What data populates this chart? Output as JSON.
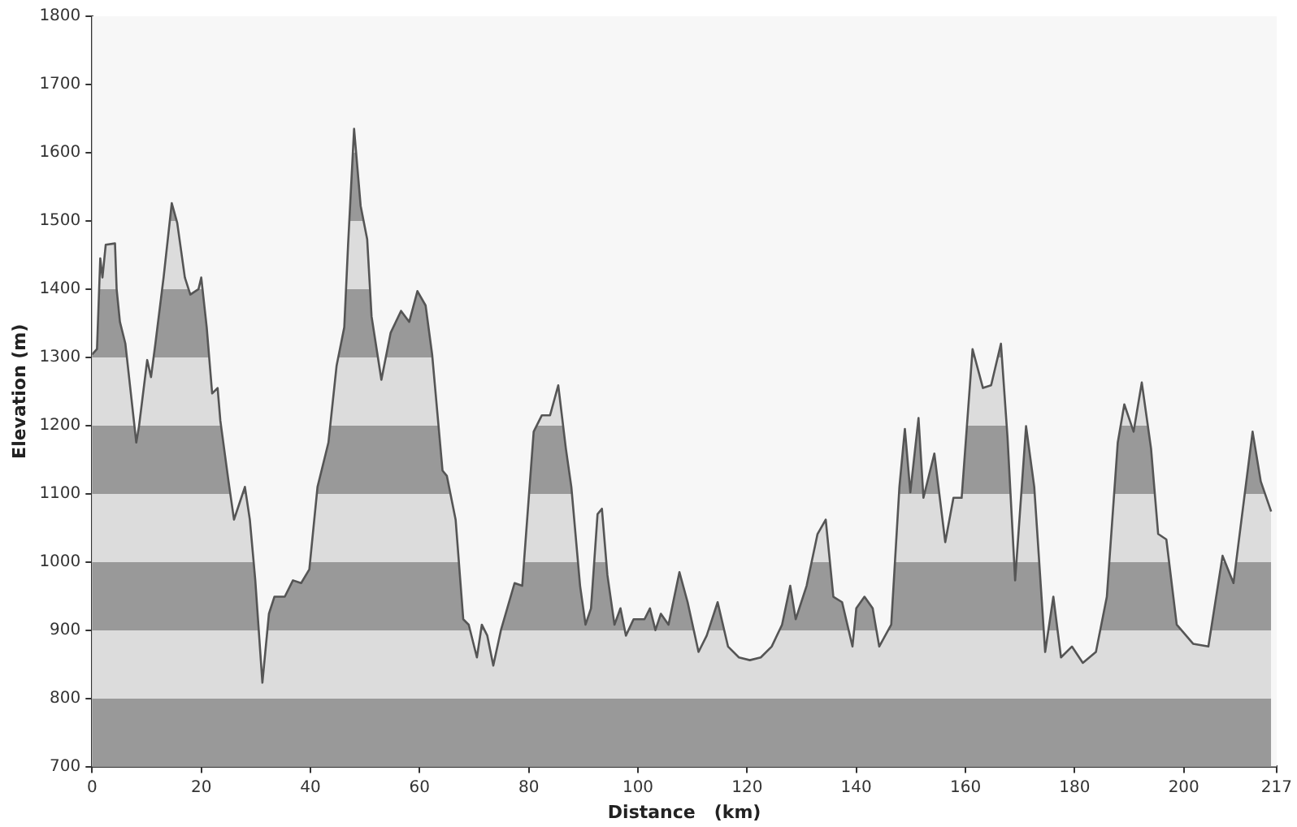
{
  "chart_data": {
    "type": "area",
    "xlabel": "Distance   (km)",
    "ylabel": "Elevation (m)",
    "xlim": [
      0,
      217
    ],
    "xticks": [
      0,
      20,
      40,
      60,
      80,
      100,
      120,
      140,
      160,
      180,
      200,
      217
    ],
    "ylim": [
      700,
      1800
    ],
    "yticks": [
      700,
      800,
      900,
      1000,
      1100,
      1200,
      1300,
      1400,
      1500,
      1600,
      1700,
      1800
    ],
    "grid": false,
    "marker": "none",
    "line_style": "solid",
    "series": [
      {
        "color": "#555555",
        "x": [
          0,
          0.9,
          1.5,
          1.9,
          2.5,
          4.2,
          4.5,
          5.1,
          6.1,
          8.1,
          8.6,
          10.1,
          10.8,
          11.6,
          13.1,
          14.6,
          15.6,
          17,
          18,
          19.5,
          20,
          21,
          22,
          23,
          23.5,
          25,
          26,
          27,
          28,
          28.9,
          29.9,
          31.2,
          32.4,
          33.4,
          35.3,
          36.8,
          38.3,
          39.8,
          41.3,
          43.3,
          44.8,
          46.2,
          46.9,
          48,
          49.2,
          50.4,
          51.2,
          53,
          54.7,
          56.6,
          58.1,
          59.6,
          61.1,
          62.3,
          64.2,
          65,
          66.6,
          68,
          69,
          70.5,
          71.4,
          72.4,
          73.5,
          74.9,
          77.4,
          78.8,
          80.9,
          82.4,
          83.9,
          85.4,
          86.8,
          87.8,
          89.4,
          90.4,
          91.4,
          92.6,
          93.4,
          94.4,
          95.7,
          96.8,
          97.8,
          99.2,
          101.2,
          102.2,
          103.2,
          104.2,
          105.6,
          107.6,
          109.1,
          111.1,
          112.6,
          114.6,
          116.5,
          118.5,
          120.5,
          122.5,
          124.5,
          126.4,
          127.9,
          128.9,
          130.9,
          132.9,
          134.4,
          135.8,
          137.4,
          139.3,
          140,
          141.5,
          143,
          144.2,
          146.4,
          147.9,
          148.9,
          149.9,
          151.4,
          152.3,
          154.3,
          156.3,
          157.8,
          159.3,
          161.3,
          163.2,
          164.7,
          166.5,
          167.7,
          169.1,
          171.1,
          172.6,
          174.6,
          176.1,
          177.5,
          179.5,
          181.5,
          183.9,
          185.9,
          187.9,
          189.1,
          190.8,
          192.3,
          194,
          195.3,
          196.8,
          198.7,
          201.7,
          204.5,
          207.1,
          209.1,
          212.6,
          214.1,
          216
        ],
        "values": [
          1304,
          1312,
          1445,
          1417,
          1465,
          1467,
          1400,
          1352,
          1320,
          1175,
          1199,
          1296,
          1271,
          1320,
          1417,
          1526,
          1497,
          1417,
          1392,
          1400,
          1417,
          1344,
          1247,
          1255,
          1207,
          1118,
          1062,
          1086,
          1110,
          1062,
          973,
          823,
          924,
          949,
          949,
          973,
          969,
          989,
          1110,
          1175,
          1288,
          1344,
          1465,
          1635,
          1522,
          1473,
          1360,
          1267,
          1336,
          1368,
          1352,
          1397,
          1376,
          1304,
          1134,
          1126,
          1062,
          916,
          908,
          860,
          908,
          892,
          848,
          900,
          969,
          965,
          1191,
          1215,
          1215,
          1259,
          1166,
          1110,
          965,
          908,
          932,
          1070,
          1078,
          981,
          908,
          932,
          892,
          916,
          916,
          932,
          900,
          924,
          908,
          985,
          941,
          868,
          892,
          941,
          876,
          860,
          856,
          860,
          876,
          908,
          965,
          916,
          965,
          1041,
          1062,
          949,
          941,
          876,
          932,
          949,
          932,
          876,
          908,
          1110,
          1195,
          1102,
          1211,
          1094,
          1159,
          1029,
          1094,
          1094,
          1312,
          1255,
          1259,
          1320,
          1183,
          973,
          1199,
          1110,
          868,
          949,
          860,
          876,
          852,
          868,
          949,
          1175,
          1231,
          1191,
          1263,
          1166,
          1041,
          1033,
          908,
          880,
          876,
          1009,
          969,
          1191,
          1118,
          1074
        ]
      }
    ]
  }
}
